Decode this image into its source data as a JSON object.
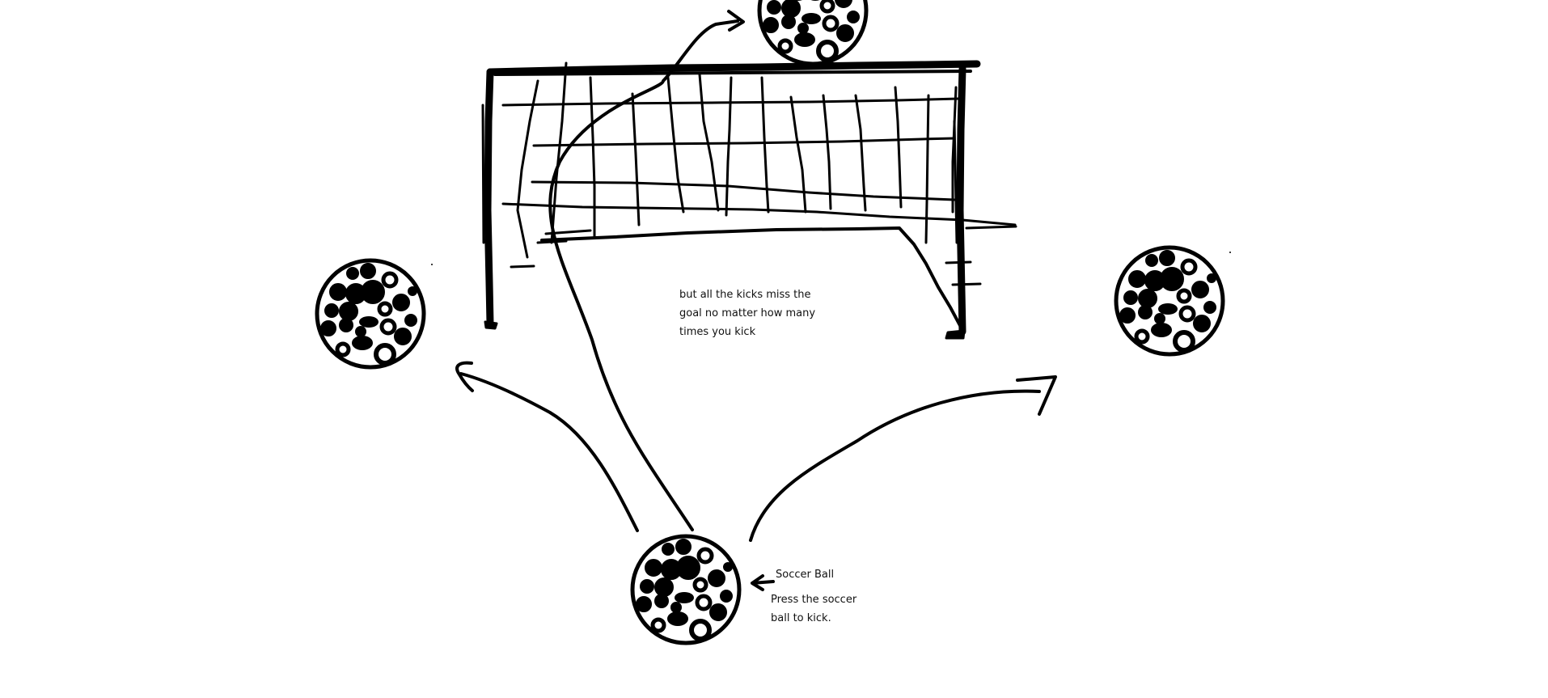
{
  "captions": {
    "miss_note": "but all the kicks miss the goal no matter how many times you kick",
    "ball_label": "Soccer Ball",
    "kick_hint": "Press the soccer ball to kick."
  },
  "colors": {
    "ink": "#000000",
    "background": "#ffffff"
  }
}
